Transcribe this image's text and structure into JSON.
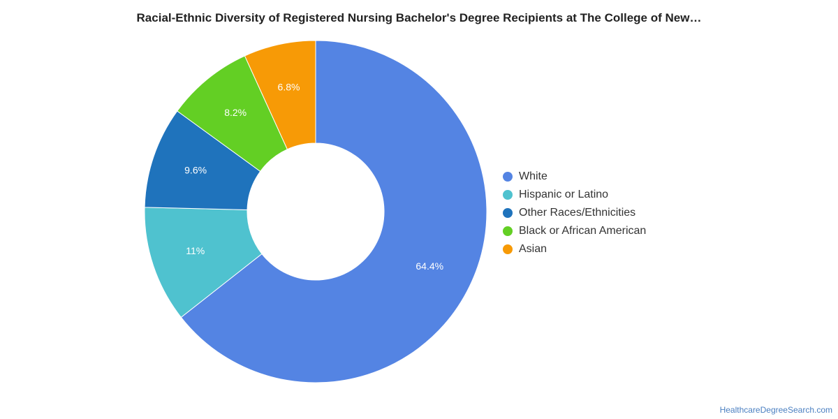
{
  "chart_data": {
    "type": "pie",
    "title": "Racial-Ethnic Diversity of Registered Nursing Bachelor's Degree Recipients at The College of New…",
    "categories": [
      "White",
      "Hispanic or Latino",
      "Other Races/Ethnicities",
      "Black or African American",
      "Asian"
    ],
    "values": [
      64.4,
      11,
      9.6,
      8.2,
      6.8
    ],
    "labels": [
      "64.4%",
      "11%",
      "9.6%",
      "8.2%",
      "6.8%"
    ],
    "colors": [
      "#5484e3",
      "#4fc2cf",
      "#1f73bc",
      "#63cf24",
      "#f79a06"
    ],
    "legend_position": "right",
    "donut": true
  },
  "credit": "HealthcareDegreeSearch.com"
}
